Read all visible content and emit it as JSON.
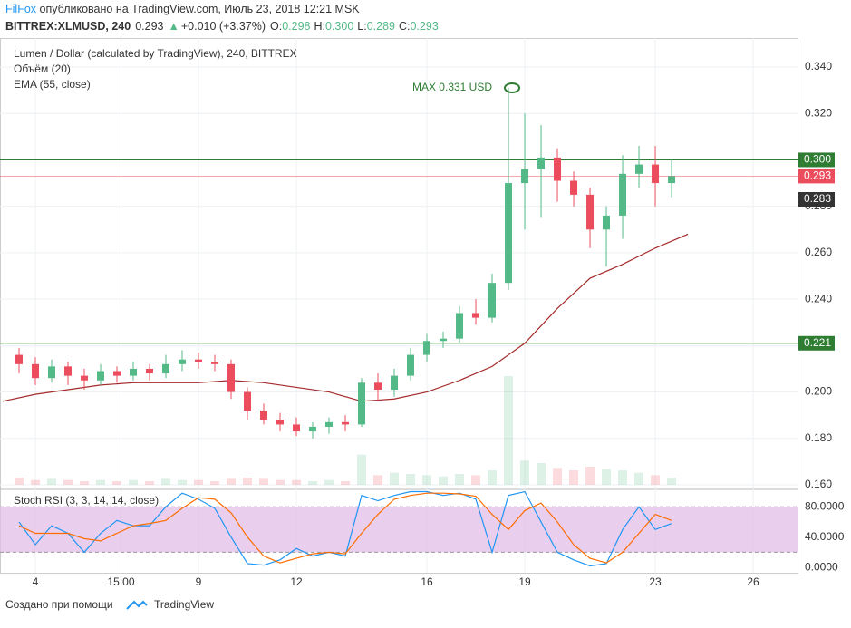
{
  "header": {
    "author": "FilFox",
    "published": "опубликовано на TradingView.com, Июль 23, 2018 12:21 MSK",
    "symbol": "BITTREX:XLMUSD, 240",
    "last": "0.293",
    "change": "+0.010 (+3.37%)",
    "o": "O:",
    "ov": "0.298",
    "h": "H:",
    "hv": "0.300",
    "l": "L:",
    "lv": "0.289",
    "c": "C:",
    "cv": "0.293"
  },
  "footer": {
    "created": "Создано при помощи",
    "brand": "TradingView"
  },
  "chart_data": [
    {
      "type": "candlestick",
      "title": "Lumen / Dollar (calculated by TradingView), 240, BITTREX",
      "volume_title": "Объём (20)",
      "ema_title": "EMA (55, close)",
      "up_color": "#53b987",
      "down_color": "#eb4d5c",
      "x": [
        3.5,
        4,
        4.5,
        5,
        5.5,
        6,
        6.5,
        7,
        7.5,
        8,
        8.5,
        9,
        9.5,
        10,
        10.5,
        11,
        11.5,
        12,
        12.5,
        13,
        13.5,
        14,
        14.5,
        15,
        15.5,
        16,
        16.5,
        17,
        17.5,
        18,
        18.5,
        19,
        19.5,
        20,
        20.5,
        21,
        21.5,
        22,
        22.5,
        23,
        23.5
      ],
      "open": [
        0.216,
        0.212,
        0.206,
        0.211,
        0.207,
        0.205,
        0.209,
        0.207,
        0.21,
        0.208,
        0.212,
        0.214,
        0.213,
        0.212,
        0.2,
        0.192,
        0.188,
        0.186,
        0.183,
        0.185,
        0.187,
        0.186,
        0.204,
        0.201,
        0.207,
        0.216,
        0.222,
        0.223,
        0.234,
        0.232,
        0.247,
        0.29,
        0.296,
        0.301,
        0.291,
        0.285,
        0.27,
        0.276,
        0.294,
        0.298,
        0.29
      ],
      "high": [
        0.219,
        0.215,
        0.214,
        0.213,
        0.21,
        0.212,
        0.211,
        0.213,
        0.212,
        0.216,
        0.218,
        0.217,
        0.216,
        0.214,
        0.202,
        0.195,
        0.191,
        0.189,
        0.187,
        0.189,
        0.19,
        0.206,
        0.208,
        0.21,
        0.219,
        0.225,
        0.226,
        0.237,
        0.24,
        0.251,
        0.331,
        0.32,
        0.315,
        0.305,
        0.295,
        0.288,
        0.28,
        0.302,
        0.306,
        0.306,
        0.3
      ],
      "low": [
        0.208,
        0.203,
        0.204,
        0.203,
        0.201,
        0.203,
        0.204,
        0.205,
        0.205,
        0.206,
        0.209,
        0.21,
        0.209,
        0.197,
        0.188,
        0.186,
        0.183,
        0.181,
        0.18,
        0.182,
        0.183,
        0.185,
        0.196,
        0.198,
        0.205,
        0.213,
        0.219,
        0.221,
        0.229,
        0.23,
        0.244,
        0.27,
        0.275,
        0.282,
        0.28,
        0.262,
        0.254,
        0.266,
        0.288,
        0.28,
        0.284
      ],
      "close": [
        0.212,
        0.206,
        0.211,
        0.207,
        0.205,
        0.209,
        0.207,
        0.21,
        0.208,
        0.212,
        0.214,
        0.213,
        0.212,
        0.2,
        0.192,
        0.188,
        0.186,
        0.183,
        0.185,
        0.187,
        0.186,
        0.204,
        0.201,
        0.207,
        0.216,
        0.222,
        0.223,
        0.234,
        0.232,
        0.247,
        0.29,
        0.296,
        0.301,
        0.291,
        0.285,
        0.27,
        0.276,
        0.294,
        0.298,
        0.29,
        0.293
      ],
      "volume": [
        6,
        4,
        5,
        4,
        3,
        4,
        3,
        4,
        3,
        5,
        4,
        4,
        3,
        5,
        6,
        5,
        4,
        4,
        3,
        4,
        3,
        25,
        8,
        10,
        9,
        8,
        7,
        9,
        8,
        12,
        90,
        20,
        18,
        14,
        12,
        15,
        13,
        12,
        10,
        8,
        6
      ],
      "ema": {
        "color": "#a52a2a",
        "x": [
          3,
          4,
          5,
          6,
          7,
          8,
          9,
          10,
          11,
          12,
          13,
          14,
          15,
          16,
          17,
          18,
          19,
          20,
          21,
          22,
          23,
          24
        ],
        "values": [
          0.196,
          0.199,
          0.201,
          0.203,
          0.204,
          0.204,
          0.204,
          0.205,
          0.204,
          0.202,
          0.2,
          0.196,
          0.197,
          0.2,
          0.205,
          0.211,
          0.221,
          0.236,
          0.249,
          0.255,
          0.262,
          0.268
        ]
      },
      "max_label": "MAX 0.331 USD",
      "price_lines": [
        {
          "value": 0.3,
          "label": "0.300",
          "color": "#2e7d32"
        },
        {
          "value": 0.221,
          "label": "0.221",
          "color": "#2e7d32"
        },
        {
          "value": 0.293,
          "label": "0.293",
          "color": "#eb4d5c"
        }
      ],
      "price_marker": {
        "value": 0.283,
        "label": "0.283"
      },
      "xlim": [
        2.917,
        27.36
      ],
      "xticks": [
        {
          "value": 4,
          "label": "4"
        },
        {
          "value": 6.625,
          "label": "15:00"
        },
        {
          "value": 9,
          "label": "9"
        },
        {
          "value": 12,
          "label": "12"
        },
        {
          "value": 16,
          "label": "16"
        },
        {
          "value": 19,
          "label": "19"
        },
        {
          "value": 23,
          "label": "23"
        },
        {
          "value": 26,
          "label": "26"
        }
      ],
      "ylim": [
        0.16,
        0.3525
      ],
      "yticks": [
        {
          "value": 0.16,
          "label": "0.160"
        },
        {
          "value": 0.18,
          "label": "0.180"
        },
        {
          "value": 0.2,
          "label": "0.200"
        },
        {
          "value": 0.22,
          "label": "0.220"
        },
        {
          "value": 0.24,
          "label": "0.240"
        },
        {
          "value": 0.26,
          "label": "0.260"
        },
        {
          "value": 0.28,
          "label": "0.280"
        },
        {
          "value": 0.3,
          "label": "0.300"
        },
        {
          "value": 0.32,
          "label": "0.320"
        },
        {
          "value": 0.34,
          "label": "0.340"
        }
      ],
      "grid": true
    },
    {
      "type": "line",
      "title": "Stoch RSI (3, 3, 14, 14, close)",
      "band": [
        20,
        80
      ],
      "series": [
        {
          "name": "K",
          "color": "#2196f3",
          "values": [
            60,
            30,
            55,
            45,
            20,
            45,
            62,
            55,
            55,
            80,
            98,
            90,
            78,
            40,
            5,
            3,
            10,
            25,
            15,
            20,
            15,
            95,
            88,
            95,
            100,
            100,
            95,
            98,
            90,
            20,
            95,
            100,
            60,
            20,
            10,
            2,
            5,
            50,
            80,
            50,
            58
          ]
        },
        {
          "name": "D",
          "color": "#ff6d00",
          "values": [
            55,
            45,
            45,
            45,
            38,
            35,
            45,
            55,
            58,
            62,
            78,
            92,
            90,
            72,
            40,
            15,
            6,
            12,
            18,
            20,
            18,
            45,
            70,
            90,
            95,
            98,
            98,
            97,
            94,
            70,
            50,
            75,
            85,
            60,
            30,
            12,
            6,
            20,
            45,
            70,
            62
          ]
        }
      ],
      "ylim": [
        -7,
        103
      ],
      "yticks": [
        {
          "value": 0,
          "label": "0.0000"
        },
        {
          "value": 40,
          "label": "40.0000"
        },
        {
          "value": 80,
          "label": "80.0000"
        }
      ]
    }
  ]
}
